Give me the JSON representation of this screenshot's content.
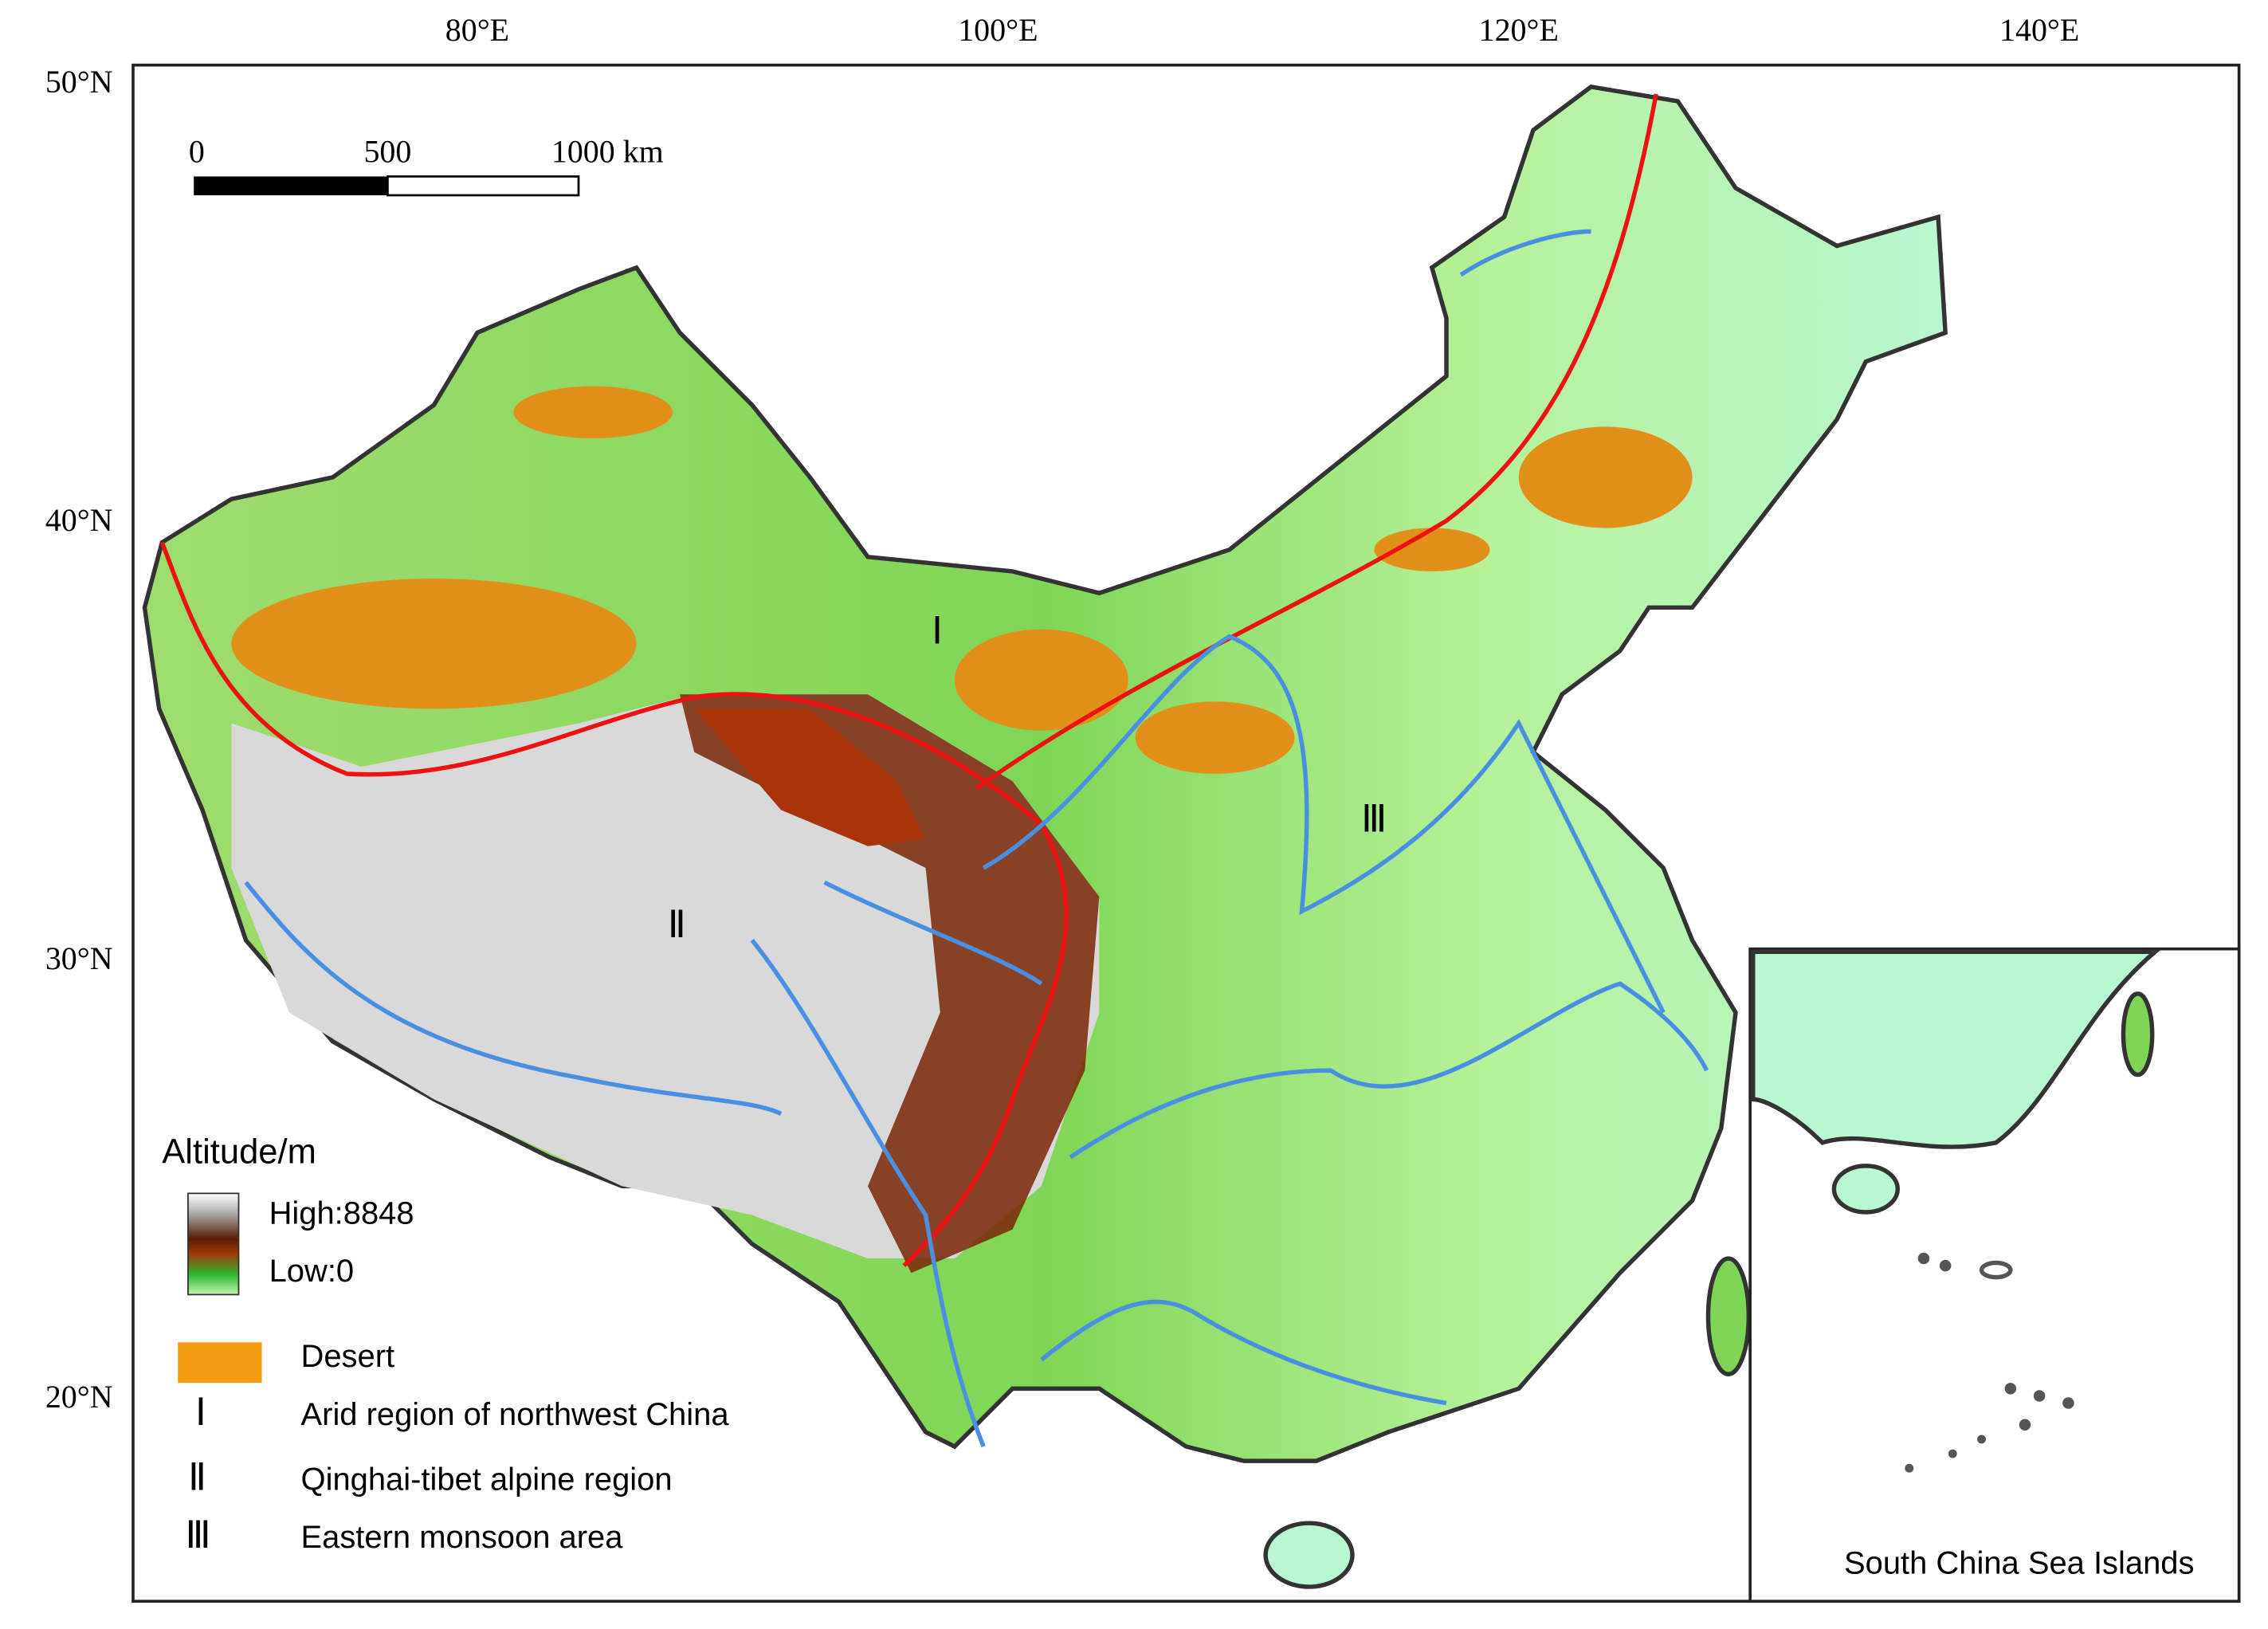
{
  "map": {
    "lon_labels": [
      "80°E",
      "100°E",
      "120°E",
      "140°E"
    ],
    "lat_labels": [
      "50°N",
      "40°N",
      "30°N",
      "20°N"
    ],
    "scale_bar": {
      "labels": [
        "0",
        "500",
        "1000 km"
      ]
    },
    "legend": {
      "title": "Altitude/m",
      "high": "High:8848",
      "low": "Low:0",
      "desert": "Desert",
      "regions": [
        {
          "mark": "Ⅰ",
          "text": "Arid region of northwest China"
        },
        {
          "mark": "Ⅱ",
          "text": "Qinghai-tibet alpine region"
        },
        {
          "mark": "Ⅲ",
          "text": "Eastern monsoon area"
        }
      ]
    },
    "region_labels": [
      "Ⅰ",
      "Ⅱ",
      "Ⅲ"
    ],
    "inset": {
      "label": "South China Sea Islands"
    }
  }
}
